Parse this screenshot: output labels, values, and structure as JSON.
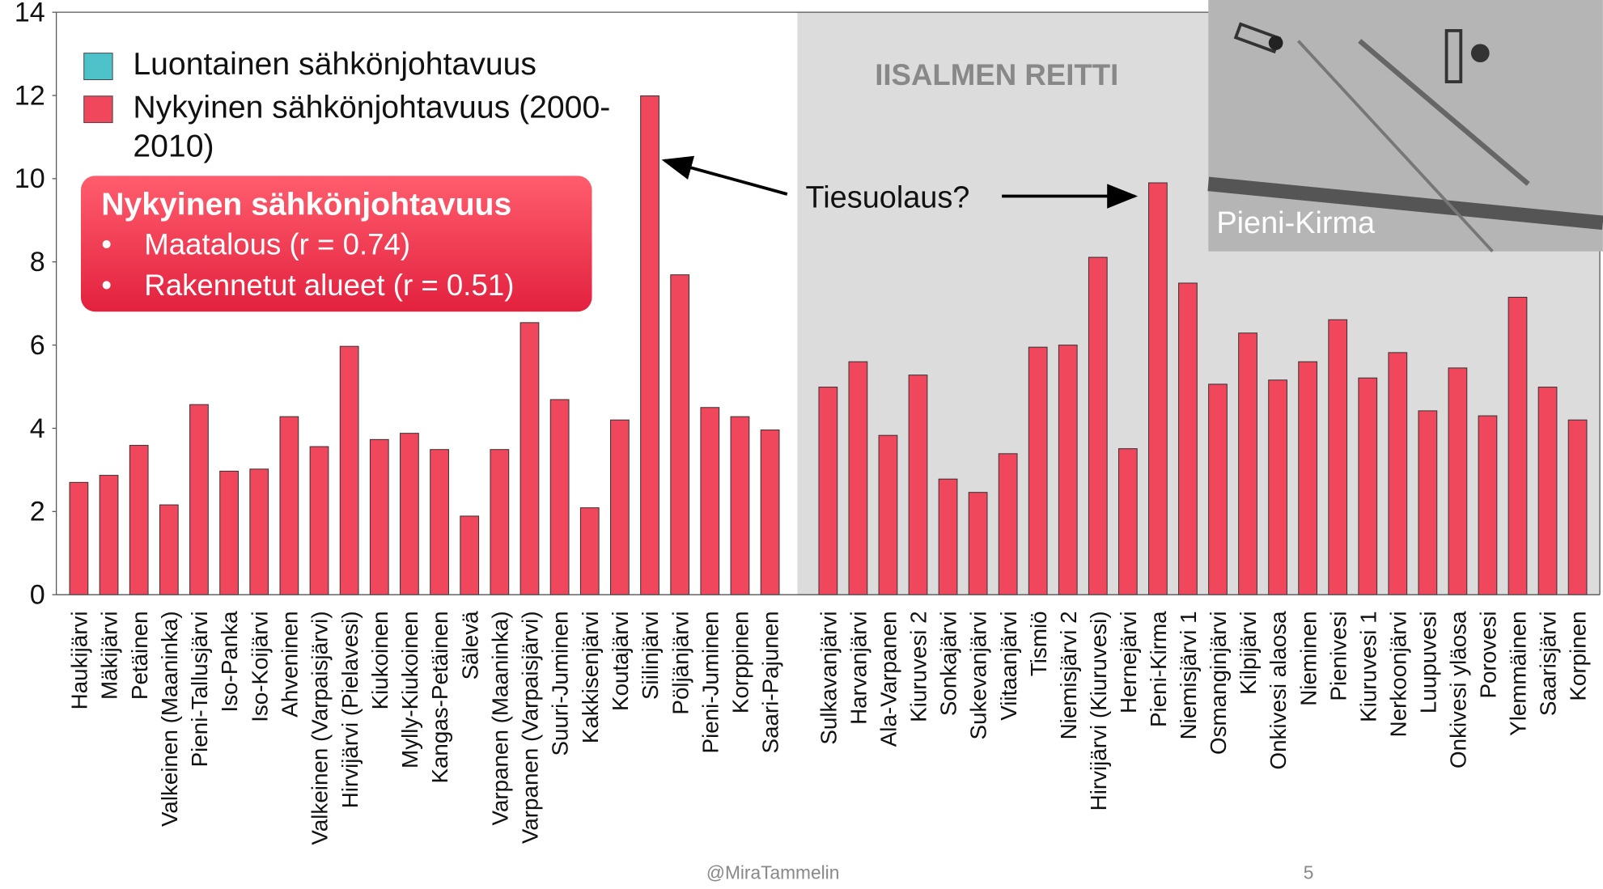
{
  "chart_data": {
    "type": "bar",
    "categories": [
      "Haukijärvi",
      "Mäkijärvi",
      "Petäinen",
      "Valkeinen (Maaninka)",
      "Pieni-Tallusjärvi",
      "Iso-Panka",
      "Iso-Koijärvi",
      "Ahveninen",
      "Valkeinen (Varpaisjärvi)",
      "Hirvijärvi (Pielavesi)",
      "Kiukoinen",
      "Mylly-Kiukoinen",
      "Kangas-Petäinen",
      "Sälevä",
      "Varpanen (Maaninka)",
      "Varpanen (Varpaisjärvi)",
      "Suuri-Juminen",
      "Kakkisenjärvi",
      "Koutajärvi",
      "Siilinjärvi",
      "Pöljänjärvi",
      "Pieni-Juminen",
      "Korppinen",
      "Saari-Pajunen",
      "Sulkavanjärvi",
      "Harvanjärvi",
      "Ala-Varpanen",
      "Kiuruvesi 2",
      "Sonkajärvi",
      "Sukevanjärvi",
      "Viitaanjärvi",
      "Tismiö",
      "Niemisjärvi 2",
      "Hirvijärvi (Kiuruvesi)",
      "Hernejärvi",
      "Pieni-Kirma",
      "Niemisjärvi 1",
      "Osmanginjärvi",
      "Kilpijärvi",
      "Onkivesi alaosa",
      "Nieminen",
      "Pienivesi",
      "Kiuruvesi 1",
      "Nerkoonjärvi",
      "Luupuvesi",
      "Onkivesi yläosa",
      "Porovesi",
      "Ylemmäinen",
      "Saarisjärvi",
      "Korpinen"
    ],
    "series": [
      {
        "name": "Luontainen sähkönjohtavuus",
        "color": "#4dc3c9",
        "values": [
          null,
          null,
          null,
          null,
          null,
          null,
          null,
          null,
          null,
          null,
          null,
          null,
          null,
          null,
          null,
          null,
          null,
          null,
          null,
          null,
          null,
          null,
          null,
          null,
          null,
          null,
          null,
          null,
          null,
          null,
          null,
          null,
          null,
          null,
          null,
          null,
          null,
          null,
          null,
          null,
          null,
          null,
          null,
          null,
          null,
          null,
          null,
          null,
          null,
          null
        ]
      },
      {
        "name": "Nykyinen sähkönjohtavuus (2000-2010)",
        "color": "#f0475c",
        "values": [
          2.7,
          2.87,
          3.59,
          2.16,
          4.57,
          2.97,
          3.02,
          4.28,
          3.56,
          5.97,
          3.73,
          3.88,
          3.49,
          1.89,
          3.49,
          6.54,
          4.69,
          2.09,
          4.2,
          11.99,
          7.69,
          4.5,
          4.28,
          3.96,
          4.99,
          5.6,
          3.83,
          5.28,
          2.78,
          2.46,
          3.39,
          5.95,
          6.0,
          8.11,
          3.51,
          9.9,
          7.49,
          5.06,
          6.29,
          5.16,
          5.6,
          6.61,
          5.21,
          5.82,
          4.42,
          5.45,
          4.3,
          7.15,
          4.99,
          4.2
        ]
      }
    ],
    "ylim": [
      0,
      14
    ],
    "yticks": [
      0,
      2,
      4,
      6,
      8,
      10,
      12,
      14
    ],
    "region_label": "IISALMEN REITTI",
    "annotation": "Tiesuolaus?",
    "callout": {
      "title": "Nykyinen sähkönjohtavuus",
      "items": [
        "Maatalous (r = 0.74)",
        "Rakennetut alueet (r = 0.51)"
      ]
    },
    "photo_label": "Pieni-Kirma"
  },
  "footer": {
    "author": "@MiraTammelin",
    "page": "5"
  }
}
